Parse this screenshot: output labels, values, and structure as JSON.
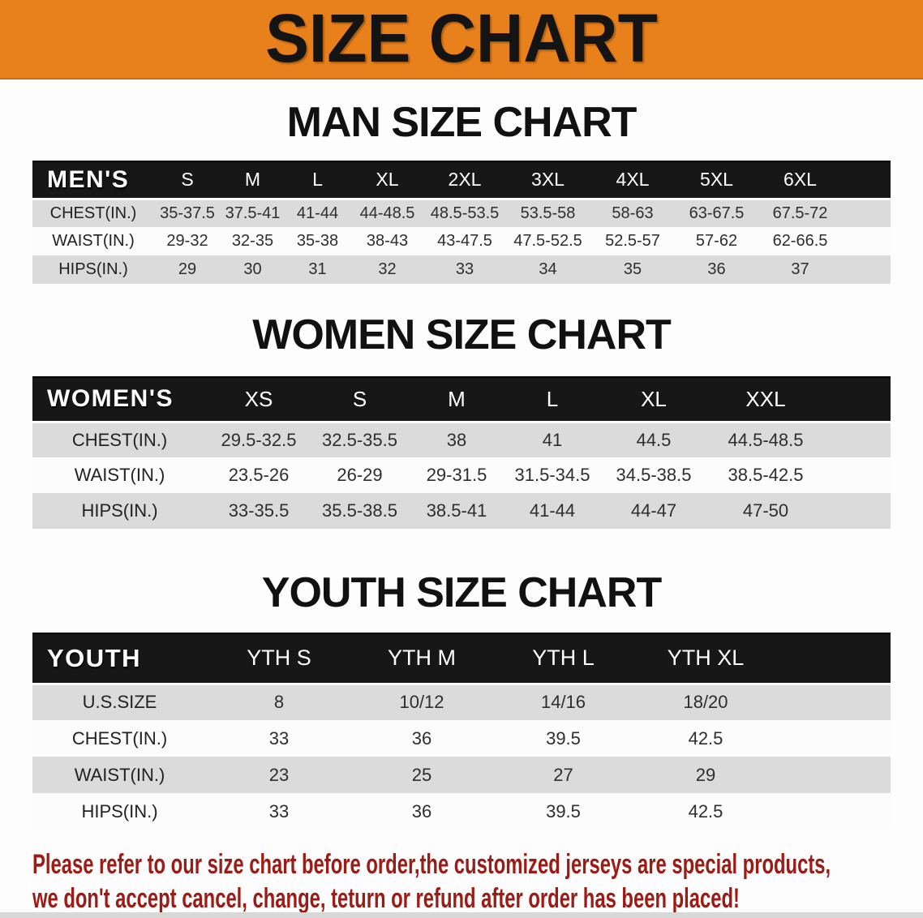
{
  "banner": {
    "title": "SIZE CHART"
  },
  "sections": [
    {
      "heading": "MAN SIZE CHART",
      "table": {
        "header": [
          "MEN'S",
          "S",
          "M",
          "L",
          "XL",
          "2XL",
          "3XL",
          "4XL",
          "5XL",
          "6XL"
        ],
        "rows": [
          [
            "CHEST(IN.)",
            "35-37.5",
            "37.5-41",
            "41-44",
            "44-48.5",
            "48.5-53.5",
            "53.5-58",
            "58-63",
            "63-67.5",
            "67.5-72"
          ],
          [
            "WAIST(IN.)",
            "29-32",
            "32-35",
            "35-38",
            "38-43",
            "43-47.5",
            "47.5-52.5",
            "52.5-57",
            "57-62",
            "62-66.5"
          ],
          [
            "HIPS(IN.)",
            "29",
            "30",
            "31",
            "32",
            "33",
            "34",
            "35",
            "36",
            "37"
          ]
        ]
      }
    },
    {
      "heading": "WOMEN SIZE CHART",
      "table": {
        "header": [
          "WOMEN'S",
          "XS",
          "S",
          "M",
          "L",
          "XL",
          "XXL"
        ],
        "rows": [
          [
            "CHEST(IN.)",
            "29.5-32.5",
            "32.5-35.5",
            "38",
            "41",
            "44.5",
            "44.5-48.5"
          ],
          [
            "WAIST(IN.)",
            "23.5-26",
            "26-29",
            "29-31.5",
            "31.5-34.5",
            "34.5-38.5",
            "38.5-42.5"
          ],
          [
            "HIPS(IN.)",
            "33-35.5",
            "35.5-38.5",
            "38.5-41",
            "41-44",
            "44-47",
            "47-50"
          ]
        ]
      }
    },
    {
      "heading": "YOUTH SIZE CHART",
      "table": {
        "header": [
          "YOUTH",
          "YTH S",
          "YTH M",
          "YTH L",
          "YTH XL"
        ],
        "rows": [
          [
            "U.S.SIZE",
            "8",
            "10/12",
            "14/16",
            "18/20"
          ],
          [
            "CHEST(IN.)",
            "33",
            "36",
            "39.5",
            "42.5"
          ],
          [
            "WAIST(IN.)",
            "23",
            "25",
            "27",
            "29"
          ],
          [
            "HIPS(IN.)",
            "33",
            "36",
            "39.5",
            "42.5"
          ]
        ]
      }
    }
  ],
  "disclaimer": {
    "line1": "Please refer to our size chart before order,the customized jerseys are special products,",
    "line2": "we don't accept cancel, change, teturn or refund after order has been placed!"
  },
  "colors": {
    "banner_background": "#e8801c",
    "table_header_background": "#171717",
    "table_row_gray": "#dbdbdb",
    "table_row_white": "#fcfcfc",
    "disclaimer_text": "#9c1b15"
  }
}
